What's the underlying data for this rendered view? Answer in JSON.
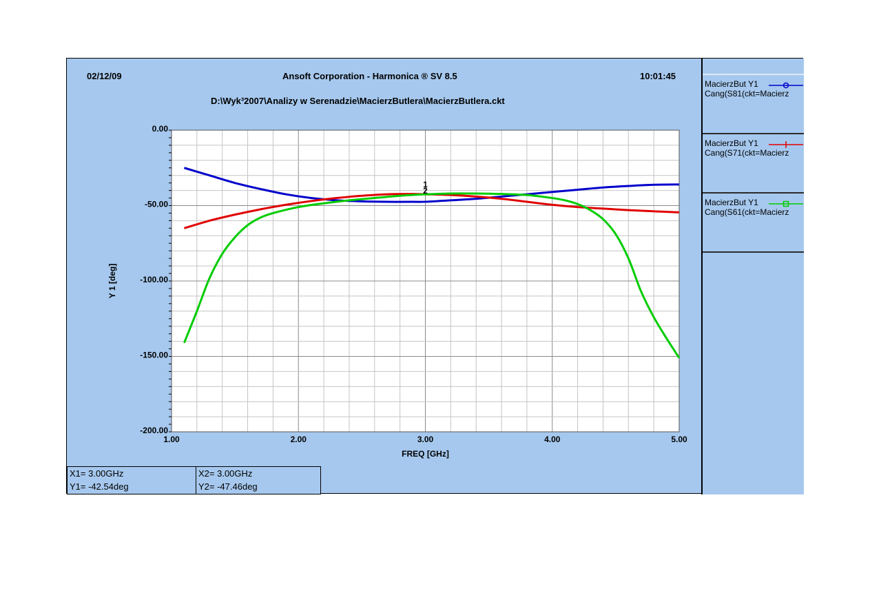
{
  "header": {
    "date": "02/12/09",
    "title": "Ansoft Corporation - Harmonica ® SV 8.5",
    "time": "10:01:45",
    "path": "D:\\Wyk³2007\\Analizy w Serenadzie\\MacierzButlera\\MacierzButlera.ckt"
  },
  "legend": [
    {
      "line1": "MacierzBut Y1",
      "line2": "Cang(S81(ckt=Macierz",
      "color": "#0000cc",
      "marker": "circle"
    },
    {
      "line1": "MacierzBut Y1",
      "line2": "Cang(S71(ckt=Macierz",
      "color": "#e00000",
      "marker": "plus"
    },
    {
      "line1": "MacierzBut Y1",
      "line2": "Cang(S61(ckt=Macierz",
      "color": "#00cc00",
      "marker": "square"
    }
  ],
  "readout": {
    "x1": "X1= 3.00GHz",
    "y1": "Y1= -42.54deg",
    "x2": "X2= 3.00GHz",
    "y2": "Y2= -47.46deg"
  },
  "markers": {
    "m1": "1",
    "m2": "2"
  },
  "chart_data": {
    "type": "line",
    "xlabel": "FREQ [GHz]",
    "ylabel": "Y 1  [deg]",
    "xlim": [
      1.0,
      5.0
    ],
    "ylim": [
      -200,
      0
    ],
    "xticks": [
      {
        "v": 1.0,
        "label": "1.00"
      },
      {
        "v": 2.0,
        "label": "2.00"
      },
      {
        "v": 3.0,
        "label": "3.00"
      },
      {
        "v": 4.0,
        "label": "4.00"
      },
      {
        "v": 5.0,
        "label": "5.00"
      }
    ],
    "yticks": [
      {
        "v": 0,
        "label": "0.00"
      },
      {
        "v": -50,
        "label": "-50.00"
      },
      {
        "v": -100,
        "label": "-100.00"
      },
      {
        "v": -150,
        "label": "-150.00"
      },
      {
        "v": -200,
        "label": "-200.00"
      }
    ],
    "grid": true,
    "series": [
      {
        "color": "#0000cc",
        "x": [
          1.1,
          1.3,
          1.5,
          1.7,
          1.9,
          2.1,
          2.3,
          2.5,
          2.7,
          2.9,
          3.0,
          3.2,
          3.4,
          3.6,
          3.8,
          4.0,
          4.2,
          4.4,
          4.6,
          4.8,
          5.0
        ],
        "y": [
          -25,
          -30,
          -35,
          -39,
          -42.5,
          -45,
          -46.5,
          -47.2,
          -47.5,
          -47.5,
          -47.46,
          -46.5,
          -45.5,
          -44,
          -42.5,
          -41,
          -39.5,
          -38,
          -37,
          -36.2,
          -36
        ]
      },
      {
        "color": "#e00000",
        "x": [
          1.1,
          1.3,
          1.5,
          1.7,
          1.9,
          2.1,
          2.3,
          2.5,
          2.7,
          2.9,
          3.0,
          3.2,
          3.4,
          3.6,
          3.8,
          4.0,
          4.2,
          4.4,
          4.6,
          4.8,
          5.0
        ],
        "y": [
          -65,
          -60,
          -56,
          -52.5,
          -49.5,
          -47,
          -45,
          -43.5,
          -42.5,
          -42.3,
          -42.5,
          -43,
          -44,
          -45.5,
          -47.5,
          -49.5,
          -51,
          -52,
          -53,
          -53.8,
          -54.5
        ]
      },
      {
        "color": "#00cc00",
        "x": [
          1.1,
          1.2,
          1.3,
          1.4,
          1.5,
          1.6,
          1.7,
          1.8,
          2.0,
          2.2,
          2.4,
          2.6,
          2.8,
          3.0,
          3.2,
          3.4,
          3.6,
          3.8,
          4.0,
          4.1,
          4.2,
          4.3,
          4.4,
          4.5,
          4.6,
          4.7,
          4.8,
          4.9,
          5.0
        ],
        "y": [
          -141,
          -120,
          -98,
          -82,
          -71,
          -63,
          -58,
          -55,
          -51,
          -48.5,
          -46.5,
          -45,
          -43.5,
          -42.54,
          -42,
          -42,
          -42.3,
          -43,
          -45,
          -46.5,
          -49,
          -53,
          -59,
          -69,
          -85,
          -107,
          -124,
          -138,
          -151
        ]
      }
    ]
  }
}
